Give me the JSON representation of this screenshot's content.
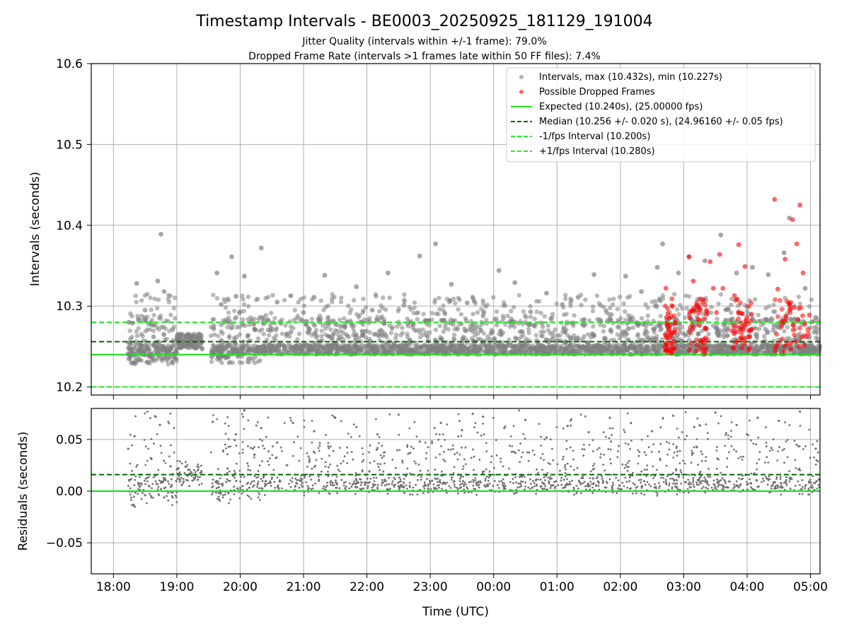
{
  "chart_data": [
    {
      "type": "scatter",
      "title": "Timestamp Intervals - BE0003_20250925_181129_191004",
      "subtitle_1": "Jitter Quality (intervals within +/-1 frame): 79.0%",
      "subtitle_2": "Dropped Frame Rate (intervals >1 frames late within 50 FF files): 7.4%",
      "ylabel": "Intervals (seconds)",
      "ylim": [
        10.19,
        10.6
      ],
      "yticks": [
        "10.2",
        "10.3",
        "10.4",
        "10.5",
        "10.6"
      ],
      "grid": true,
      "legend_position": "top-right",
      "legend": {
        "intervals": "Intervals, max (10.432s), min (10.227s)",
        "dropped": "Possible Dropped Frames",
        "expected": "Expected (10.240s), (25.00000 fps)",
        "median": "Median (10.256 +/- 0.020 s), (24.96160 +/- 0.05 fps)",
        "minus": "-1/fps Interval (10.200s)",
        "plus": "+1/fps Interval (10.280s)"
      },
      "reference_lines": {
        "expected": 10.24,
        "median": 10.256,
        "minus_one_frame": 10.2,
        "plus_one_frame": 10.28
      },
      "series": [
        {
          "name": "Intervals, max (10.432s), min (10.227s)",
          "color": "#808080",
          "points": [
            [
              "18:14",
              10.241
            ],
            [
              "18:18",
              10.279
            ],
            [
              "18:22",
              10.328
            ],
            [
              "18:26",
              10.252
            ],
            [
              "18:30",
              10.295
            ],
            [
              "18:34",
              10.238
            ],
            [
              "18:38",
              10.262
            ],
            [
              "18:42",
              10.331
            ],
            [
              "18:45",
              10.389
            ],
            [
              "18:48",
              10.318
            ],
            [
              "18:52",
              10.244
            ],
            [
              "18:56",
              10.271
            ],
            [
              "19:00",
              10.262
            ],
            [
              "19:06",
              10.256
            ],
            [
              "19:12",
              10.251
            ],
            [
              "19:18",
              10.248
            ],
            [
              "19:24",
              10.247
            ],
            [
              "19:34",
              10.243
            ],
            [
              "19:38",
              10.341
            ],
            [
              "19:42",
              10.302
            ],
            [
              "19:48",
              10.281
            ],
            [
              "19:52",
              10.361
            ],
            [
              "19:56",
              10.312
            ],
            [
              "20:00",
              10.293
            ],
            [
              "20:04",
              10.337
            ],
            [
              "20:08",
              10.235
            ],
            [
              "20:14",
              10.271
            ],
            [
              "20:20",
              10.372
            ],
            [
              "20:26",
              10.283
            ],
            [
              "20:35",
              10.305
            ],
            [
              "20:48",
              10.268
            ],
            [
              "21:00",
              10.292
            ],
            [
              "21:10",
              10.311
            ],
            [
              "21:20",
              10.338
            ],
            [
              "21:35",
              10.275
            ],
            [
              "21:50",
              10.324
            ],
            [
              "22:05",
              10.295
            ],
            [
              "22:20",
              10.341
            ],
            [
              "22:35",
              10.301
            ],
            [
              "22:50",
              10.362
            ],
            [
              "23:05",
              10.377
            ],
            [
              "23:20",
              10.327
            ],
            [
              "23:35",
              10.304
            ],
            [
              "23:50",
              10.288
            ],
            [
              "00:05",
              10.344
            ],
            [
              "00:20",
              10.329
            ],
            [
              "00:35",
              10.293
            ],
            [
              "00:50",
              10.316
            ],
            [
              "01:05",
              10.302
            ],
            [
              "01:20",
              10.311
            ],
            [
              "01:35",
              10.339
            ],
            [
              "01:50",
              10.285
            ],
            [
              "02:05",
              10.337
            ],
            [
              "02:20",
              10.318
            ],
            [
              "02:35",
              10.348
            ],
            [
              "02:40",
              10.377
            ],
            [
              "02:55",
              10.341
            ],
            [
              "03:05",
              10.361
            ],
            [
              "03:20",
              10.356
            ],
            [
              "03:35",
              10.388
            ],
            [
              "03:50",
              10.341
            ],
            [
              "04:05",
              10.348
            ],
            [
              "04:20",
              10.339
            ],
            [
              "04:35",
              10.366
            ],
            [
              "04:40",
              10.409
            ],
            [
              "04:55",
              10.322
            ],
            [
              "05:05",
              10.286
            ]
          ]
        },
        {
          "name": "Possible Dropped Frames",
          "color": "#ff0000",
          "points": [
            [
              "02:43",
              10.322
            ],
            [
              "02:45",
              10.291
            ],
            [
              "02:47",
              10.261
            ],
            [
              "02:49",
              10.248
            ],
            [
              "03:05",
              10.361
            ],
            [
              "03:09",
              10.331
            ],
            [
              "03:12",
              10.301
            ],
            [
              "03:15",
              10.276
            ],
            [
              "03:19",
              10.254
            ],
            [
              "03:25",
              10.355
            ],
            [
              "03:28",
              10.322
            ],
            [
              "03:31",
              10.292
            ],
            [
              "03:34",
              10.364
            ],
            [
              "03:37",
              10.322
            ],
            [
              "03:48",
              10.313
            ],
            [
              "03:52",
              10.376
            ],
            [
              "03:55",
              10.291
            ],
            [
              "03:58",
              10.349
            ],
            [
              "04:01",
              10.262
            ],
            [
              "04:26",
              10.432
            ],
            [
              "04:29",
              10.321
            ],
            [
              "04:33",
              10.281
            ],
            [
              "04:36",
              10.358
            ],
            [
              "04:40",
              10.303
            ],
            [
              "04:43",
              10.407
            ],
            [
              "04:47",
              10.377
            ],
            [
              "04:50",
              10.425
            ],
            [
              "04:53",
              10.341
            ],
            [
              "04:56",
              10.262
            ],
            [
              "04:59",
              10.289
            ]
          ]
        }
      ]
    },
    {
      "type": "scatter",
      "title": "",
      "xlabel": "Time (UTC)",
      "ylabel": "Residuals (seconds)",
      "ylim": [
        -0.08,
        0.08
      ],
      "yticks": [
        "−0.05",
        "0.00",
        "0.05"
      ],
      "xticks": [
        "18:00",
        "19:00",
        "20:00",
        "21:00",
        "22:00",
        "23:00",
        "00:00",
        "01:00",
        "02:00",
        "03:00",
        "04:00",
        "05:00"
      ],
      "xrange": [
        "17:39",
        "05:09"
      ],
      "grid": true,
      "reference_lines": {
        "expected": 0.0,
        "median": 0.016
      },
      "series": [
        {
          "name": "",
          "color": "#808080",
          "points": [
            [
              "18:14",
              0.041
            ],
            [
              "18:20",
              0.053
            ],
            [
              "18:24",
              0.006
            ],
            [
              "18:30",
              -0.004
            ],
            [
              "18:36",
              0.031
            ],
            [
              "18:40",
              0.072
            ],
            [
              "18:44",
              0.064
            ],
            [
              "18:48",
              -0.006
            ],
            [
              "18:54",
              0.024
            ],
            [
              "19:00",
              0.021
            ],
            [
              "19:10",
              0.015
            ],
            [
              "19:20",
              0.011
            ],
            [
              "19:34",
              0.067
            ],
            [
              "19:40",
              -0.008
            ],
            [
              "19:48",
              0.022
            ],
            [
              "19:56",
              0.055
            ],
            [
              "20:04",
              0.078
            ],
            [
              "20:12",
              0.041
            ],
            [
              "20:20",
              0.061
            ],
            [
              "20:35",
              0.047
            ],
            [
              "20:50",
              0.066
            ],
            [
              "21:10",
              0.058
            ],
            [
              "21:30",
              0.071
            ],
            [
              "21:50",
              0.062
            ],
            [
              "22:10",
              0.055
            ],
            [
              "22:30",
              0.074
            ],
            [
              "22:50",
              0.048
            ],
            [
              "23:10",
              0.066
            ],
            [
              "23:30",
              0.059
            ],
            [
              "23:50",
              0.072
            ],
            [
              "00:10",
              0.061
            ],
            [
              "00:30",
              0.069
            ],
            [
              "00:50",
              0.052
            ],
            [
              "01:10",
              0.063
            ],
            [
              "01:30",
              0.057
            ],
            [
              "01:50",
              0.071
            ],
            [
              "02:10",
              0.066
            ],
            [
              "02:30",
              0.058
            ],
            [
              "02:50",
              0.073
            ],
            [
              "03:10",
              0.062
            ],
            [
              "03:30",
              0.076
            ],
            [
              "03:50",
              0.064
            ],
            [
              "04:10",
              0.071
            ],
            [
              "04:30",
              0.068
            ],
            [
              "04:50",
              0.077
            ],
            [
              "05:05",
              0.041
            ]
          ]
        }
      ]
    }
  ]
}
